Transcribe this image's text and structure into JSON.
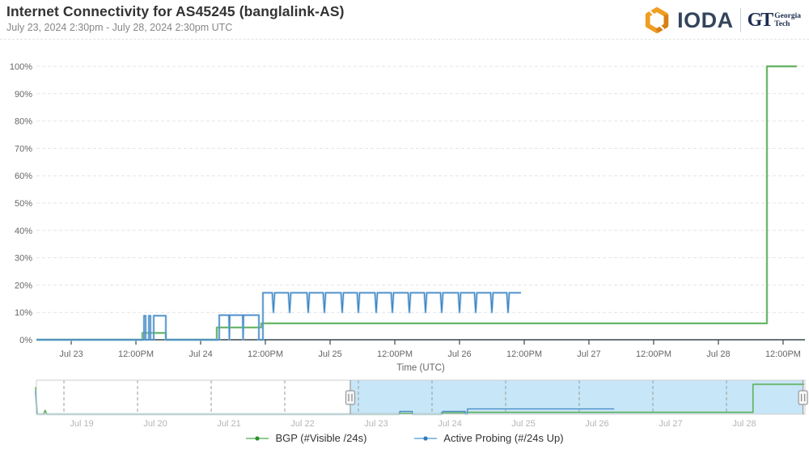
{
  "header": {
    "title": "Internet Connectivity for AS45245 (banglalink-AS)",
    "subtitle": "July 23, 2024 2:30pm - July 28, 2024 2:30pm UTC"
  },
  "logo": {
    "ioda": "IODA",
    "gt_mark": "GT",
    "gt_top": "Georgia",
    "gt_bottom": "Tech"
  },
  "colors": {
    "green_core": "#47a447",
    "green_halo": "#9ed49b",
    "blue_core": "#3f87c5",
    "blue_halo": "#a5c9e6",
    "grid": "#e4e4e4",
    "axis": "#37474f",
    "tick_label": "#666666",
    "axis_title": "#666666",
    "nav_label": "#b5b5b5",
    "nav_grid": "#9b9b9b",
    "nav_border": "#cfcfcf",
    "selection_fill": "#c7e6f7",
    "handle_fill": "#f5f5f5",
    "handle_stroke": "#999999",
    "handle_grip": "#888888"
  },
  "legend": {
    "items": [
      {
        "label": "BGP (#Visible /24s)",
        "dot": "#2f8f2f",
        "line": "#8fcc8f"
      },
      {
        "label": "Active Probing (#/24s Up)",
        "dot": "#2f7cba",
        "line": "#8ec0e2"
      }
    ]
  },
  "chart_data": [
    {
      "type": "line",
      "name": "main-chart",
      "xlabel": "Time (UTC)",
      "x_unit": "days since Jul 19 2024 00:00 UTC",
      "xlim": [
        3.731,
        9.669
      ],
      "ylim": [
        0,
        100
      ],
      "grid": "horizontal-dashed",
      "yticks": [
        {
          "v": 0,
          "label": "0%"
        },
        {
          "v": 10,
          "label": "10%"
        },
        {
          "v": 20,
          "label": "20%"
        },
        {
          "v": 30,
          "label": "30%"
        },
        {
          "v": 40,
          "label": "40%"
        },
        {
          "v": 50,
          "label": "50%"
        },
        {
          "v": 60,
          "label": "60%"
        },
        {
          "v": 70,
          "label": "70%"
        },
        {
          "v": 80,
          "label": "80%"
        },
        {
          "v": 90,
          "label": "90%"
        },
        {
          "v": 100,
          "label": "100%"
        }
      ],
      "xticks": [
        {
          "t": 4.0,
          "label": "Jul 23"
        },
        {
          "t": 4.5,
          "label": "12:00PM"
        },
        {
          "t": 5.0,
          "label": "Jul 24"
        },
        {
          "t": 5.5,
          "label": "12:00PM"
        },
        {
          "t": 6.0,
          "label": "Jul 25"
        },
        {
          "t": 6.5,
          "label": "12:00PM"
        },
        {
          "t": 7.0,
          "label": "Jul 26"
        },
        {
          "t": 7.5,
          "label": "12:00PM"
        },
        {
          "t": 8.0,
          "label": "Jul 27"
        },
        {
          "t": 8.5,
          "label": "12:00PM"
        },
        {
          "t": 9.0,
          "label": "Jul 28"
        },
        {
          "t": 9.5,
          "label": "12:00PM"
        }
      ],
      "series": [
        {
          "name": "BGP (#Visible /24s)",
          "points": [
            [
              3.731,
              0
            ],
            [
              4.55,
              0
            ],
            [
              4.55,
              2.5
            ],
            [
              4.7313,
              2.5
            ],
            [
              4.7313,
              0
            ],
            [
              5.125,
              0
            ],
            [
              5.125,
              4.5
            ],
            [
              5.4688,
              4.5
            ],
            [
              5.4688,
              6
            ],
            [
              9.375,
              6
            ],
            [
              9.375,
              100
            ],
            [
              9.606,
              100
            ]
          ]
        },
        {
          "name": "Active Probing (#/24s Up)",
          "points": [
            [
              3.731,
              0
            ],
            [
              4.5625,
              0
            ],
            [
              4.5625,
              8.8
            ],
            [
              4.575,
              8.8
            ],
            [
              4.575,
              0
            ],
            [
              4.6,
              0
            ],
            [
              4.6,
              8.8
            ],
            [
              4.6125,
              8.8
            ],
            [
              4.6125,
              0
            ],
            [
              4.6375,
              0
            ],
            [
              4.6375,
              8.8
            ],
            [
              4.7313,
              8.8
            ],
            [
              4.7313,
              0
            ],
            [
              5.1438,
              0
            ],
            [
              5.1438,
              9
            ],
            [
              5.2188,
              9
            ],
            [
              5.2219,
              0
            ],
            [
              5.225,
              9
            ],
            [
              5.325,
              9
            ],
            [
              5.3281,
              0
            ],
            [
              5.3313,
              9
            ],
            [
              5.45,
              9
            ],
            [
              5.45,
              0
            ],
            [
              5.4813,
              0
            ],
            [
              5.4813,
              17.2
            ],
            [
              5.5531,
              17.2
            ],
            [
              5.5625,
              10
            ],
            [
              5.5719,
              17.2
            ],
            [
              5.6781,
              17.2
            ],
            [
              5.6875,
              10
            ],
            [
              5.6969,
              17.2
            ],
            [
              5.8219,
              17.2
            ],
            [
              5.8313,
              10
            ],
            [
              5.8406,
              17.2
            ],
            [
              5.9469,
              17.2
            ],
            [
              5.9563,
              10
            ],
            [
              5.9656,
              17.2
            ],
            [
              6.0844,
              17.2
            ],
            [
              6.0938,
              10
            ],
            [
              6.1031,
              17.2
            ],
            [
              6.2094,
              17.2
            ],
            [
              6.2188,
              10
            ],
            [
              6.2281,
              17.2
            ],
            [
              6.3469,
              17.2
            ],
            [
              6.3563,
              10
            ],
            [
              6.3656,
              17.2
            ],
            [
              6.4719,
              17.2
            ],
            [
              6.4813,
              10
            ],
            [
              6.4906,
              17.2
            ],
            [
              6.6031,
              17.2
            ],
            [
              6.6125,
              10
            ],
            [
              6.6219,
              17.2
            ],
            [
              6.7281,
              17.2
            ],
            [
              6.7375,
              10
            ],
            [
              6.7469,
              17.2
            ],
            [
              6.8531,
              17.2
            ],
            [
              6.8625,
              10
            ],
            [
              6.8719,
              17.2
            ],
            [
              6.9906,
              17.2
            ],
            [
              7.0,
              10
            ],
            [
              7.0094,
              17.2
            ],
            [
              7.1156,
              17.2
            ],
            [
              7.125,
              10
            ],
            [
              7.1344,
              17.2
            ],
            [
              7.2406,
              17.2
            ],
            [
              7.25,
              10
            ],
            [
              7.2594,
              17.2
            ],
            [
              7.3656,
              17.2
            ],
            [
              7.375,
              10
            ],
            [
              7.3844,
              17.2
            ],
            [
              7.475,
              17.2
            ]
          ]
        }
      ]
    },
    {
      "type": "line",
      "name": "navigator",
      "x_unit": "days since Jul 19 2024 00:00 UTC",
      "xlim": [
        -0.374,
        10.066
      ],
      "ylim": [
        0,
        100
      ],
      "selection": [
        3.89,
        10.04
      ],
      "xticks": [
        {
          "t": 0,
          "label": "Jul 19"
        },
        {
          "t": 1,
          "label": "Jul 20"
        },
        {
          "t": 2,
          "label": "Jul 21"
        },
        {
          "t": 3,
          "label": "Jul 22"
        },
        {
          "t": 4,
          "label": "Jul 23"
        },
        {
          "t": 5,
          "label": "Jul 24"
        },
        {
          "t": 6,
          "label": "Jul 25"
        },
        {
          "t": 7,
          "label": "Jul 26"
        },
        {
          "t": 8,
          "label": "Jul 27"
        },
        {
          "t": 9,
          "label": "Jul 28"
        }
      ],
      "series": [
        {
          "name": "BGP (#Visible /24s)",
          "points": [
            [
              -0.385,
              88
            ],
            [
              -0.363,
              0
            ],
            [
              -0.277,
              0
            ],
            [
              -0.255,
              12
            ],
            [
              -0.233,
              0
            ],
            [
              4.55,
              0
            ],
            [
              4.55,
              2.5
            ],
            [
              4.7313,
              2.5
            ],
            [
              4.7313,
              0
            ],
            [
              5.125,
              0
            ],
            [
              5.125,
              4.5
            ],
            [
              5.4688,
              4.5
            ],
            [
              5.4688,
              6
            ],
            [
              9.36,
              6
            ],
            [
              9.36,
              97
            ],
            [
              10.055,
              97
            ]
          ]
        },
        {
          "name": "Active Probing (#/24s Up)",
          "points": [
            [
              -0.385,
              75
            ],
            [
              -0.368,
              0
            ],
            [
              4.5625,
              0
            ],
            [
              4.5625,
              9
            ],
            [
              4.7313,
              9
            ],
            [
              4.7313,
              0
            ],
            [
              5.1438,
              0
            ],
            [
              5.1438,
              9
            ],
            [
              5.45,
              9
            ],
            [
              5.45,
              0
            ],
            [
              5.4813,
              0
            ],
            [
              5.4813,
              17.2
            ],
            [
              7.475,
              17.2
            ]
          ]
        }
      ]
    }
  ]
}
